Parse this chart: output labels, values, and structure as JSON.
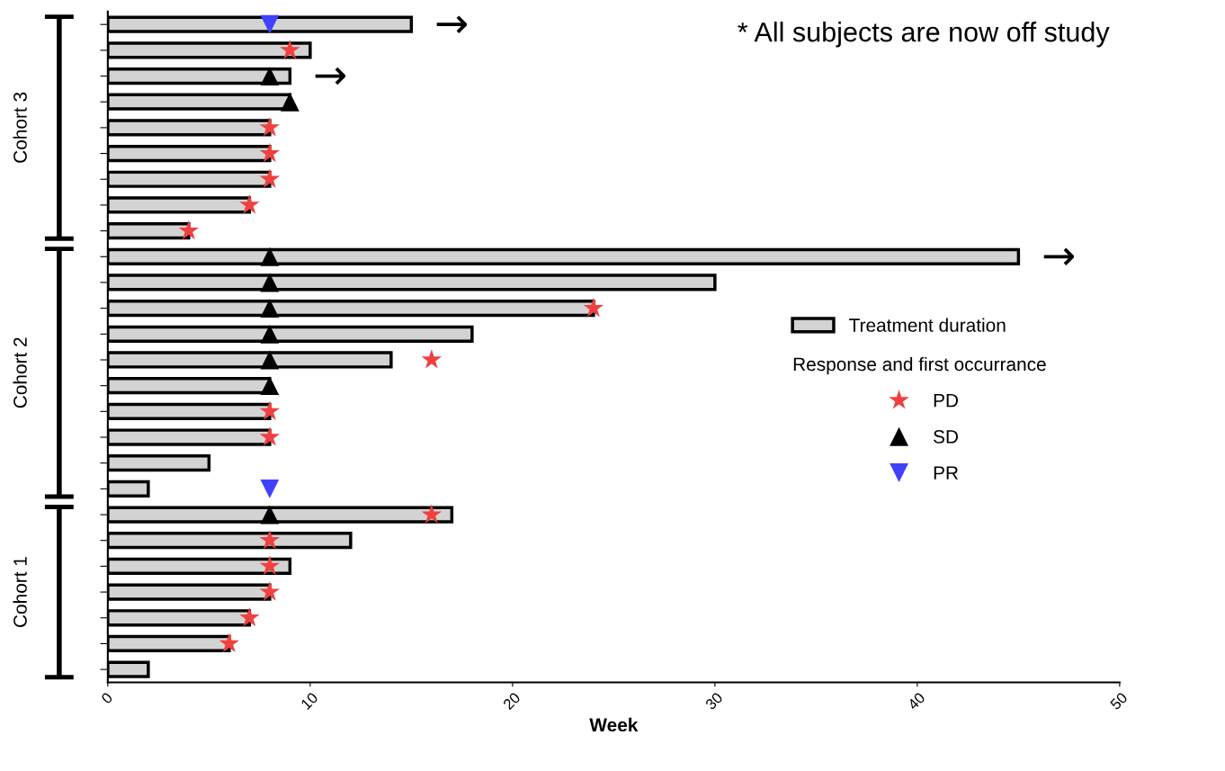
{
  "chart_data": {
    "type": "bar",
    "orientation": "horizontal",
    "xlabel": "Week",
    "categories": [
      null,
      null,
      null,
      null,
      null,
      null,
      null,
      null,
      null,
      null,
      null,
      null,
      null,
      null,
      null,
      null,
      null,
      null,
      null,
      null,
      null,
      null,
      null,
      null,
      null,
      null
    ],
    "series": [
      {
        "name": "Treatment duration",
        "color": "#d3d3d3",
        "values": [
          15,
          10,
          9,
          9,
          8,
          8,
          8,
          7,
          4,
          45,
          30,
          24,
          18,
          14,
          8,
          8,
          8,
          5,
          2,
          17,
          12,
          9,
          8,
          7,
          6,
          2
        ]
      },
      {
        "name": "PD",
        "type": "scatter",
        "marker": "star",
        "color": "#f04040",
        "values": [
          null,
          9,
          null,
          null,
          8,
          8,
          8,
          7,
          4,
          null,
          null,
          24,
          null,
          16,
          null,
          8,
          8,
          null,
          null,
          16,
          8,
          8,
          8,
          7,
          6,
          null
        ]
      },
      {
        "name": "SD",
        "type": "scatter",
        "marker": "triangle",
        "color": "#000000",
        "values": [
          null,
          null,
          8,
          9,
          null,
          null,
          null,
          null,
          null,
          8,
          8,
          8,
          8,
          8,
          8,
          null,
          null,
          null,
          null,
          8,
          null,
          null,
          null,
          null,
          null,
          null
        ]
      },
      {
        "name": "PR",
        "type": "scatter",
        "marker": "triangle_down",
        "color": "#4040ff",
        "values": [
          8,
          null,
          null,
          null,
          null,
          null,
          null,
          null,
          null,
          null,
          null,
          null,
          null,
          null,
          null,
          null,
          null,
          null,
          8,
          null,
          null,
          null,
          null,
          null,
          null,
          null
        ]
      },
      {
        "type": "scatter",
        "color": "#000000",
        "values": [
          17,
          null,
          11,
          null,
          null,
          null,
          null,
          null,
          null,
          47,
          null,
          null,
          null,
          null,
          null,
          null,
          null,
          null,
          null,
          null,
          null,
          null,
          null,
          null,
          null,
          null
        ]
      }
    ],
    "legend_title": "Response and first occurrance",
    "annotations": [
      "* All subjects are now off study",
      "Cohort 3",
      "Cohort 2",
      "Cohort 1"
    ],
    "xlim": [
      0,
      50
    ],
    "xticks": [
      0,
      10,
      20,
      30,
      40,
      50
    ],
    "legend": "right",
    "grid": false
  }
}
